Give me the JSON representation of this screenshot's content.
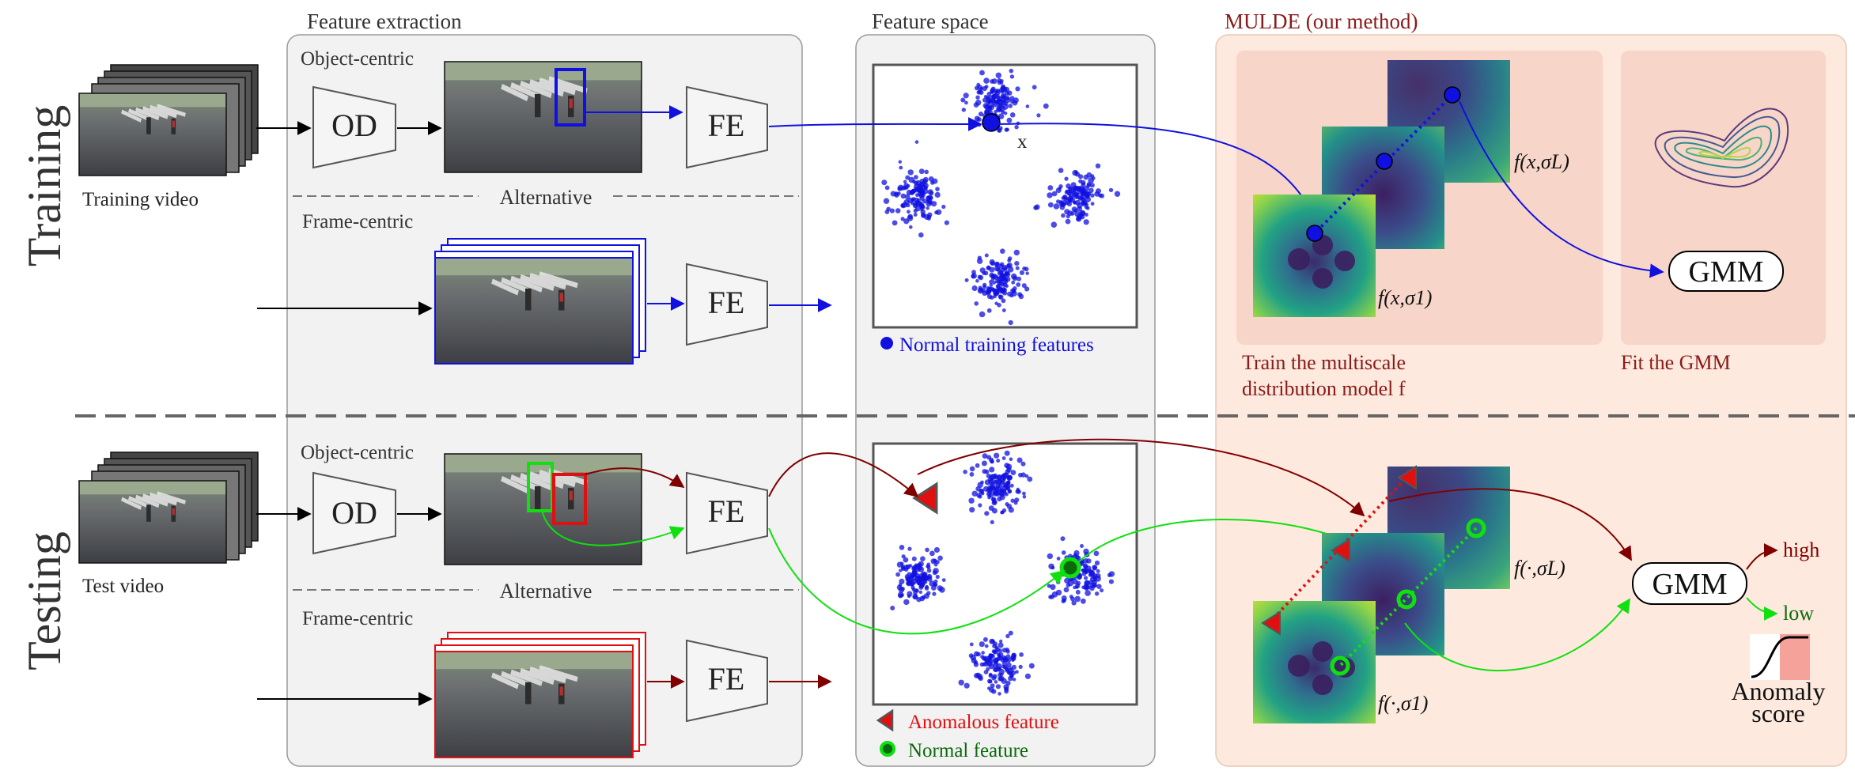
{
  "rows": {
    "training": "Training",
    "testing": "Testing"
  },
  "sections": {
    "feature_extraction": "Feature extraction",
    "feature_space": "Feature space",
    "mulde": "MULDE (our method)"
  },
  "extraction": {
    "object_centric": "Object-centric",
    "frame_centric": "Frame-centric",
    "alternative": "Alternative",
    "od": "OD",
    "fe": "FE"
  },
  "videos": {
    "training": "Training video",
    "test": "Test video"
  },
  "feature_space": {
    "point_label": "x",
    "legend_normal_training": "Normal training features",
    "legend_anomalous": "Anomalous feature",
    "legend_normal": "Normal feature"
  },
  "mulde": {
    "label_sigma_L_train": "f(x,σL)",
    "label_sigma_1_train": "f(x,σ1)",
    "label_sigma_L_test": "f(·,σL)",
    "label_sigma_1_test": "f(·,σ1)",
    "gmm": "GMM",
    "train_caption_1": "Train the multiscale",
    "train_caption_2": "distribution model f",
    "fit_caption": "Fit the GMM",
    "high": "high",
    "low": "low",
    "anomaly_1": "Anomaly",
    "anomaly_2": "score"
  },
  "colors": {
    "blue": "#1010e0",
    "red": "#e01010",
    "dark_red": "#800000",
    "green": "#10e010",
    "dark_green": "#007000",
    "panel_gray": "#f2f2f2",
    "panel_peach": "#fde9dd",
    "inner_peach": "#f7d5c8"
  }
}
